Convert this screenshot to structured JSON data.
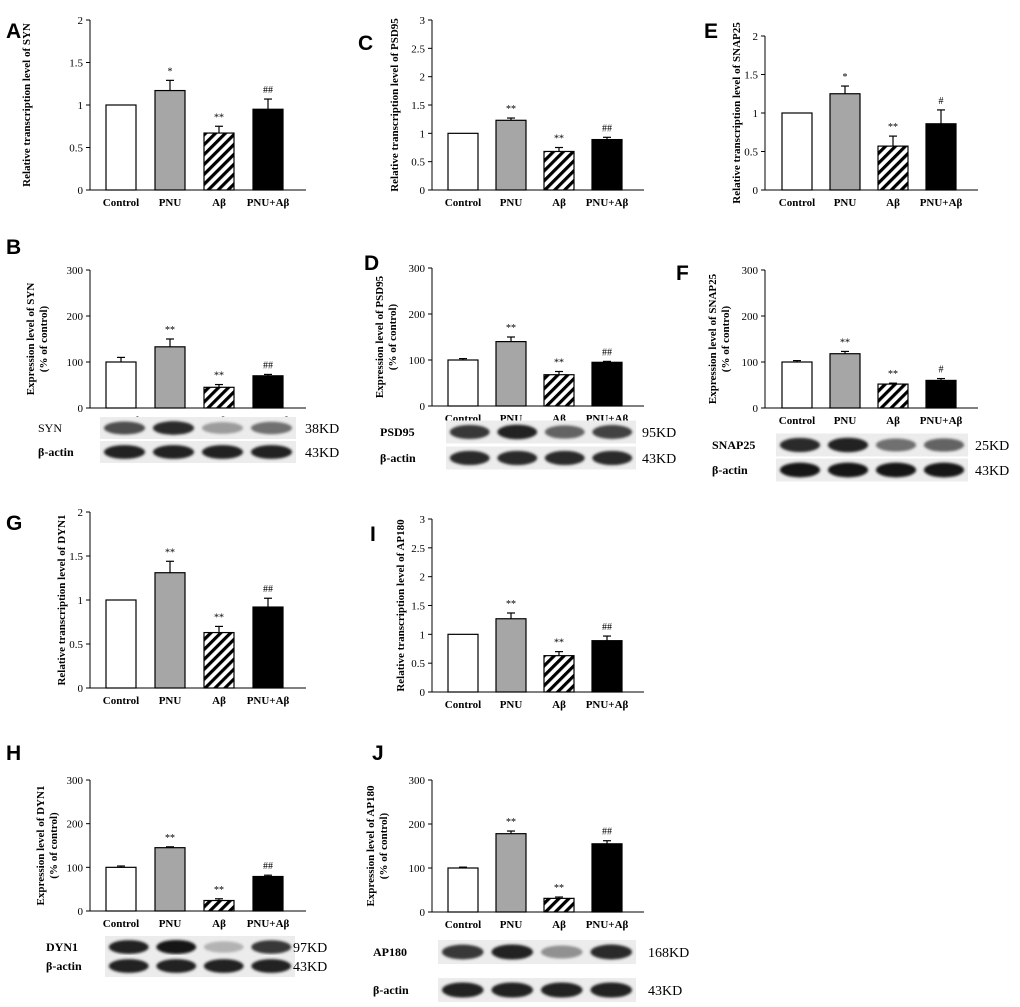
{
  "categories": [
    "Control",
    "PNU",
    "Aβ",
    "PNU+Aβ"
  ],
  "colors": {
    "control": "#ffffff",
    "pnu": "#a6a6a6",
    "abeta_hatch": "#000000",
    "pnu_abeta": "#000000",
    "axis": "#000000"
  },
  "chart_data": [
    {
      "id": "A",
      "panel_label": "A",
      "type": "bar",
      "ylabel": [
        "Relative transcription level of SYN"
      ],
      "ylim": [
        0,
        2
      ],
      "yticks": [
        "0",
        "0.5",
        "1",
        "1.5",
        "2"
      ],
      "tick_values": [
        0,
        0.5,
        1,
        1.5,
        2
      ],
      "categories": [
        "Control",
        "PNU",
        "Aβ",
        "PNU+Aβ"
      ],
      "values": [
        1.0,
        1.17,
        0.67,
        0.95
      ],
      "errors": [
        0,
        0.12,
        0.08,
        0.12
      ],
      "significance": [
        "",
        "*",
        "**",
        "##"
      ]
    },
    {
      "id": "B",
      "panel_label": "B",
      "type": "bar",
      "ylabel": [
        "Expression level of SYN",
        "(% of control)"
      ],
      "ylim": [
        0,
        300
      ],
      "yticks": [
        "0",
        "100",
        "200",
        "300"
      ],
      "tick_values": [
        0,
        100,
        200,
        300
      ],
      "categories": [
        "Control",
        "PNU",
        "Aβ",
        "PNU+Aβ"
      ],
      "values": [
        100,
        133,
        45,
        70
      ],
      "errors": [
        10,
        17,
        6,
        3
      ],
      "significance": [
        "",
        "**",
        "**",
        "##"
      ],
      "blot": {
        "target_label": "SYN",
        "target_kd": "38KD",
        "actin_label": "β-actin",
        "actin_kd": "43KD",
        "target_intensity": [
          0.7,
          0.85,
          0.35,
          0.55
        ],
        "actin_intensity": [
          0.9,
          0.9,
          0.9,
          0.9
        ]
      }
    },
    {
      "id": "C",
      "panel_label": "C",
      "type": "bar",
      "ylabel": [
        "Relative transcription level of PSD95"
      ],
      "ylim": [
        0,
        3
      ],
      "yticks": [
        "0",
        "0.5",
        "1",
        "1.5",
        "2",
        "2.5",
        "3"
      ],
      "tick_values": [
        0,
        0.5,
        1,
        1.5,
        2,
        2.5,
        3
      ],
      "categories": [
        "Control",
        "PNU",
        "Aβ",
        "PNU+Aβ"
      ],
      "values": [
        1.0,
        1.23,
        0.68,
        0.89
      ],
      "errors": [
        0,
        0.04,
        0.07,
        0.04
      ],
      "significance": [
        "",
        "**",
        "**",
        "##"
      ]
    },
    {
      "id": "D",
      "panel_label": "D",
      "type": "bar",
      "ylabel": [
        "Expression level of PSD95",
        "(% of control)"
      ],
      "ylim": [
        0,
        300
      ],
      "yticks": [
        "0",
        "100",
        "200",
        "300"
      ],
      "tick_values": [
        0,
        100,
        200,
        300
      ],
      "categories": [
        "Control",
        "PNU",
        "Aβ",
        "PNU+Aβ"
      ],
      "values": [
        100,
        140,
        68,
        95
      ],
      "errors": [
        3,
        10,
        7,
        2
      ],
      "significance": [
        "",
        "**",
        "**",
        "##"
      ],
      "blot": {
        "target_label": "PSD95",
        "target_kd": "95KD",
        "actin_label": "β-actin",
        "actin_kd": "43KD",
        "target_intensity": [
          0.8,
          0.9,
          0.6,
          0.75
        ],
        "actin_intensity": [
          0.85,
          0.85,
          0.85,
          0.85
        ]
      }
    },
    {
      "id": "E",
      "panel_label": "E",
      "type": "bar",
      "ylabel": [
        "Relative transcription level of SNAP25"
      ],
      "ylim": [
        0,
        2
      ],
      "yticks": [
        "0",
        "0.5",
        "1",
        "1.5",
        "2"
      ],
      "tick_values": [
        0,
        0.5,
        1,
        1.5,
        2
      ],
      "categories": [
        "Control",
        "PNU",
        "Aβ",
        "PNU+Aβ"
      ],
      "values": [
        1.0,
        1.25,
        0.57,
        0.86
      ],
      "errors": [
        0,
        0.1,
        0.13,
        0.18
      ],
      "significance": [
        "",
        "*",
        "**",
        "#"
      ]
    },
    {
      "id": "F",
      "panel_label": "F",
      "type": "bar",
      "ylabel": [
        "Expression level of SNAP25",
        "(% of control)"
      ],
      "ylim": [
        0,
        300
      ],
      "yticks": [
        "0",
        "100",
        "200",
        "300"
      ],
      "tick_values": [
        0,
        100,
        200,
        300
      ],
      "categories": [
        "Control",
        "PNU",
        "Aβ",
        "PNU+Aβ"
      ],
      "values": [
        100,
        118,
        52,
        60
      ],
      "errors": [
        3,
        5,
        2,
        4
      ],
      "significance": [
        "",
        "**",
        "**",
        "#"
      ],
      "blot": {
        "target_label": "SNAP25",
        "target_kd": "25KD",
        "actin_label": "β-actin",
        "actin_kd": "43KD",
        "target_intensity": [
          0.85,
          0.9,
          0.55,
          0.6
        ],
        "actin_intensity": [
          0.95,
          0.95,
          0.95,
          0.95
        ]
      }
    },
    {
      "id": "G",
      "panel_label": "G",
      "type": "bar",
      "ylabel": [
        "Relative transcription level of DYN1"
      ],
      "ylim": [
        0,
        2
      ],
      "yticks": [
        "0",
        "0.5",
        "1",
        "1.5",
        "2"
      ],
      "tick_values": [
        0,
        0.5,
        1,
        1.5,
        2
      ],
      "categories": [
        "Control",
        "PNU",
        "Aβ",
        "PNU+Aβ"
      ],
      "values": [
        1.0,
        1.31,
        0.63,
        0.92
      ],
      "errors": [
        0,
        0.13,
        0.07,
        0.1
      ],
      "significance": [
        "",
        "**",
        "**",
        "##"
      ]
    },
    {
      "id": "H",
      "panel_label": "H",
      "type": "bar",
      "ylabel": [
        "Expression level of DYN1",
        "(% of control)"
      ],
      "ylim": [
        0,
        300
      ],
      "yticks": [
        "0",
        "100",
        "200",
        "300"
      ],
      "tick_values": [
        0,
        100,
        200,
        300
      ],
      "categories": [
        "Control",
        "PNU",
        "Aβ",
        "PNU+Aβ"
      ],
      "values": [
        100,
        145,
        24,
        79
      ],
      "errors": [
        3,
        2,
        4,
        3
      ],
      "significance": [
        "",
        "**",
        "**",
        "##"
      ],
      "blot": {
        "target_label": "DYN1",
        "target_kd": "97KD",
        "actin_label": "β-actin",
        "actin_kd": "43KD",
        "target_intensity": [
          0.9,
          0.95,
          0.25,
          0.8
        ],
        "actin_intensity": [
          0.9,
          0.9,
          0.9,
          0.9
        ]
      }
    },
    {
      "id": "I",
      "panel_label": "I",
      "type": "bar",
      "ylabel": [
        "Relative transcription level of AP180"
      ],
      "ylim": [
        0,
        3
      ],
      "yticks": [
        "0",
        "0.5",
        "1",
        "1.5",
        "2",
        "2.5",
        "3"
      ],
      "tick_values": [
        0,
        0.5,
        1,
        1.5,
        2,
        2.5,
        3
      ],
      "categories": [
        "Control",
        "PNU",
        "Aβ",
        "PNU+Aβ"
      ],
      "values": [
        1.0,
        1.27,
        0.63,
        0.89
      ],
      "errors": [
        0,
        0.1,
        0.07,
        0.08
      ],
      "significance": [
        "",
        "**",
        "**",
        "##"
      ]
    },
    {
      "id": "J",
      "panel_label": "J",
      "type": "bar",
      "ylabel": [
        "Expression level of AP180",
        "(% of control)"
      ],
      "ylim": [
        0,
        300
      ],
      "yticks": [
        "0",
        "100",
        "200",
        "300"
      ],
      "tick_values": [
        0,
        100,
        200,
        300
      ],
      "categories": [
        "Control",
        "PNU",
        "Aβ",
        "PNU+Aβ"
      ],
      "values": [
        100,
        178,
        31,
        155
      ],
      "errors": [
        2,
        6,
        3,
        7
      ],
      "significance": [
        "",
        "**",
        "**",
        "##"
      ],
      "blot": {
        "target_label": "AP180",
        "target_kd": "168KD",
        "actin_label": "β-actin",
        "actin_kd": "43KD",
        "target_intensity": [
          0.8,
          0.9,
          0.4,
          0.85
        ],
        "actin_intensity": [
          0.9,
          0.9,
          0.9,
          0.9
        ]
      }
    }
  ]
}
